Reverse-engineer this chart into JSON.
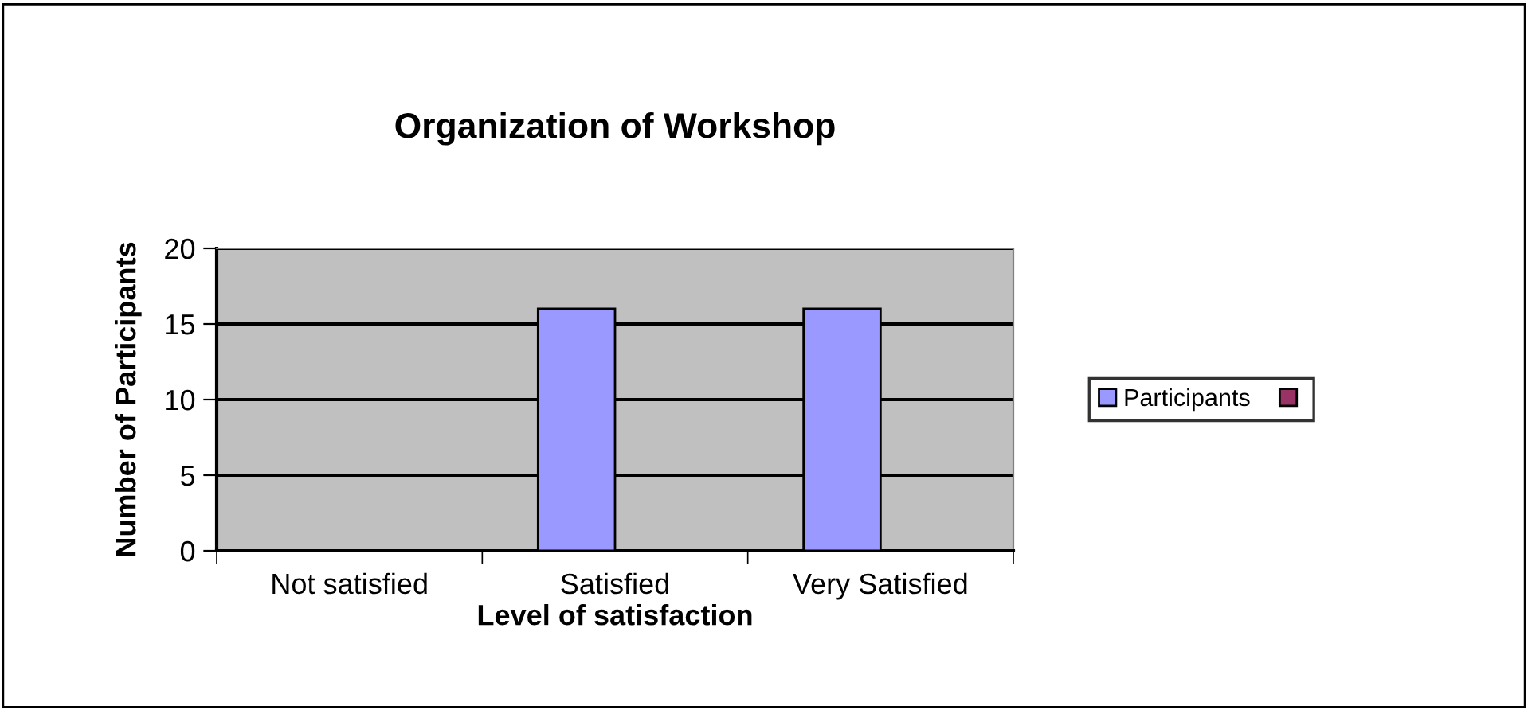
{
  "chart_data": {
    "type": "bar",
    "title": "Organization of Workshop",
    "xlabel": "Level of satisfaction",
    "ylabel": "Number of Participants",
    "categories": [
      "Not satisfied",
      "Satisfied",
      "Very Satisfied"
    ],
    "series": [
      {
        "name": "Participants",
        "color": "#9999ff",
        "values": [
          0,
          16,
          16
        ]
      },
      {
        "color": "#993366",
        "values": [
          null,
          null,
          null
        ]
      }
    ],
    "ylim": [
      0,
      20
    ],
    "yticks": [
      0,
      5,
      10,
      15,
      20
    ],
    "grid": "y",
    "legend": "right"
  }
}
